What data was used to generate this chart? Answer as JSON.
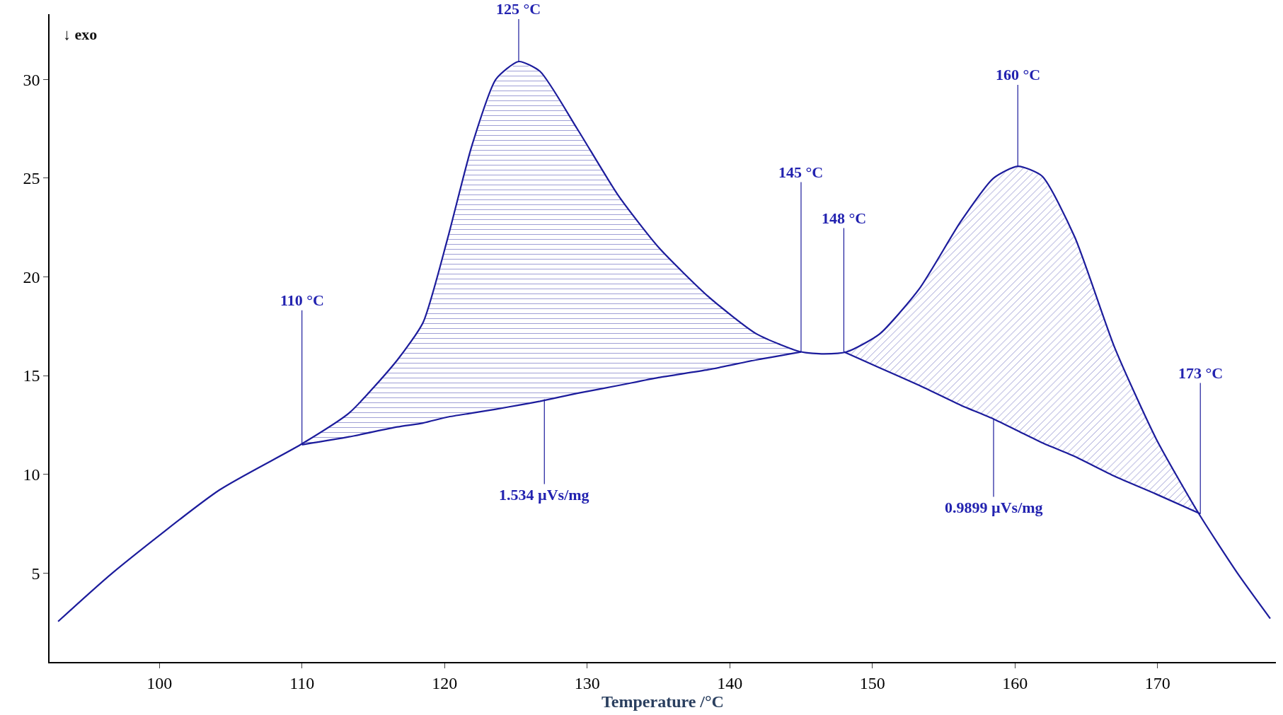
{
  "chart_data": {
    "type": "line",
    "xlabel": "Temperature /°C",
    "xlim": [
      92.3,
      178.3
    ],
    "ylim": [
      0.5,
      33.3
    ],
    "xticks": [
      100,
      110,
      120,
      130,
      140,
      150,
      160,
      170
    ],
    "yticks": [
      5,
      10,
      15,
      20,
      25,
      30
    ],
    "marker": "none",
    "line_style": "solid",
    "series": [
      {
        "color": "#1c1c9c",
        "x": [
          92.9,
          96.7,
          104.2,
          109.9,
          113.3,
          116.7,
          118.5,
          120.2,
          121.9,
          123.6,
          125.2,
          126.7,
          129.3,
          132.2,
          135.0,
          138.5,
          141.9,
          145.0,
          146.6,
          148.2,
          150.5,
          153.3,
          156.2,
          158.5,
          160.2,
          161.9,
          164.2,
          167.0,
          169.9,
          172.9,
          175.6,
          177.9
        ],
        "values": [
          2.55,
          5.0,
          9.2,
          11.5,
          13.1,
          15.8,
          17.7,
          21.9,
          26.6,
          30.0,
          30.9,
          30.4,
          27.5,
          24.1,
          21.5,
          19.0,
          17.1,
          16.2,
          16.1,
          16.2,
          17.1,
          19.4,
          22.8,
          25.0,
          25.6,
          25.1,
          22.0,
          16.4,
          11.8,
          8.0,
          5.0,
          2.7
        ]
      },
      {
        "color": "#1c1c9c",
        "x": [
          110,
          113.3,
          116.7,
          118.5,
          120.2,
          121.9,
          123.6,
          125.2,
          126.7,
          129.3,
          132.2,
          135,
          138.5,
          141.9,
          145
        ],
        "values": [
          11.5,
          11.9,
          12.4,
          12.6,
          12.9,
          13.1,
          13.3,
          13.5,
          13.7,
          14.1,
          14.5,
          14.9,
          15.3,
          15.8,
          16.2
        ],
        "lower": [
          11.5,
          11.9,
          12.4,
          12.6,
          12.9,
          13.1,
          13.3,
          13.5,
          13.7,
          14.1,
          14.5,
          14.9,
          15.3,
          15.8,
          16.2
        ],
        "upper": [
          11.5,
          13.1,
          15.8,
          17.7,
          21.9,
          26.6,
          30.0,
          30.9,
          30.4,
          27.5,
          24.1,
          21.5,
          19.0,
          17.1,
          16.2
        ]
      },
      {
        "color": "#1c1c9c",
        "x": [
          148,
          150.5,
          153.3,
          156.2,
          158.5,
          160.2,
          161.9,
          164.2,
          167,
          169.9,
          173
        ],
        "values": [
          16.2,
          15.4,
          14.5,
          13.5,
          12.8,
          12.2,
          11.6,
          10.9,
          9.9,
          9.0,
          8.0
        ],
        "lower": [
          16.2,
          15.4,
          14.5,
          13.5,
          12.8,
          12.2,
          11.6,
          10.9,
          9.9,
          9.0,
          8.0
        ],
        "upper": [
          16.2,
          17.1,
          19.4,
          22.8,
          25.0,
          25.6,
          25.1,
          22.0,
          16.4,
          11.8,
          8.0
        ]
      }
    ],
    "annotations": [
      "↓ exo",
      {
        "text": "110 °C",
        "x": 110,
        "y": 11.5
      },
      {
        "text": "125 °C",
        "x": 125.2,
        "y": 30.9
      },
      {
        "text": "145 °C",
        "x": 145,
        "y": 16.2
      },
      {
        "text": "148 °C",
        "x": 148,
        "y": 16.2
      },
      {
        "text": "160 °C",
        "x": 160.2,
        "y": 25.6
      },
      {
        "text": "173 °C",
        "x": 173,
        "y": 8.0
      },
      {
        "text": "1.534 µVs/mg",
        "x": 127,
        "y": 13.8
      },
      {
        "text": "0.9899 µVs/mg",
        "x": 158.5,
        "y": 12.8
      }
    ]
  }
}
